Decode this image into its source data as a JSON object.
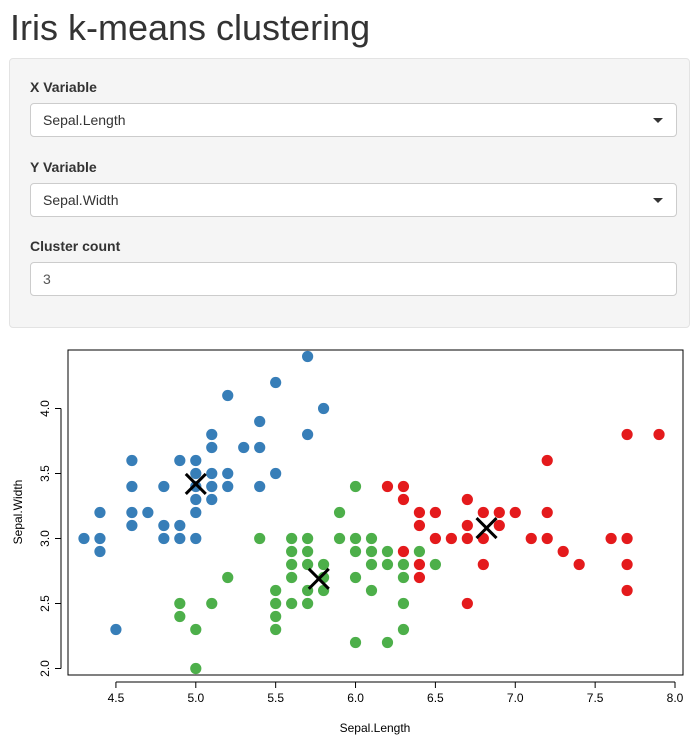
{
  "page": {
    "title": "Iris k-means clustering"
  },
  "controls": {
    "x_variable": {
      "label": "X Variable",
      "value": "Sepal.Length"
    },
    "y_variable": {
      "label": "Y Variable",
      "value": "Sepal.Width"
    },
    "cluster_count": {
      "label": "Cluster count",
      "value": "3"
    }
  },
  "chart_data": {
    "type": "scatter",
    "xlabel": "Sepal.Length",
    "ylabel": "Sepal.Width",
    "xlim": [
      4.2,
      8.05
    ],
    "ylim": [
      1.95,
      4.45
    ],
    "xticks": [
      "4.5",
      "5.0",
      "5.5",
      "6.0",
      "6.5",
      "7.0",
      "7.5",
      "8.0"
    ],
    "yticks": [
      "2.0",
      "2.5",
      "3.0",
      "3.5",
      "4.0"
    ],
    "grid": false,
    "colors": {
      "blue": "#377eb8",
      "green": "#4daf4a",
      "red": "#e41a1c",
      "center": "#000000"
    },
    "series": [
      {
        "color": "#377eb8",
        "points": [
          [
            4.3,
            3.0
          ],
          [
            4.4,
            2.9
          ],
          [
            4.4,
            3.0
          ],
          [
            4.4,
            3.2
          ],
          [
            4.5,
            2.3
          ],
          [
            4.6,
            3.1
          ],
          [
            4.6,
            3.2
          ],
          [
            4.6,
            3.4
          ],
          [
            4.6,
            3.6
          ],
          [
            4.7,
            3.2
          ],
          [
            4.8,
            3.0
          ],
          [
            4.8,
            3.1
          ],
          [
            4.8,
            3.4
          ],
          [
            4.9,
            3.0
          ],
          [
            4.9,
            3.1
          ],
          [
            4.9,
            3.6
          ],
          [
            5.0,
            3.0
          ],
          [
            5.0,
            3.2
          ],
          [
            5.0,
            3.3
          ],
          [
            5.0,
            3.4
          ],
          [
            5.0,
            3.5
          ],
          [
            5.0,
            3.6
          ],
          [
            5.1,
            3.3
          ],
          [
            5.1,
            3.4
          ],
          [
            5.1,
            3.5
          ],
          [
            5.1,
            3.7
          ],
          [
            5.1,
            3.8
          ],
          [
            5.2,
            3.4
          ],
          [
            5.2,
            3.5
          ],
          [
            5.2,
            4.1
          ],
          [
            5.3,
            3.7
          ],
          [
            5.4,
            3.4
          ],
          [
            5.4,
            3.7
          ],
          [
            5.4,
            3.9
          ],
          [
            5.5,
            3.5
          ],
          [
            5.5,
            4.2
          ],
          [
            5.7,
            3.8
          ],
          [
            5.7,
            4.4
          ],
          [
            5.8,
            4.0
          ]
        ]
      },
      {
        "color": "#4daf4a",
        "points": [
          [
            4.9,
            2.4
          ],
          [
            4.9,
            2.5
          ],
          [
            5.0,
            2.0
          ],
          [
            5.0,
            2.3
          ],
          [
            5.1,
            2.5
          ],
          [
            5.2,
            2.7
          ],
          [
            5.4,
            3.0
          ],
          [
            5.5,
            2.3
          ],
          [
            5.5,
            2.4
          ],
          [
            5.5,
            2.5
          ],
          [
            5.5,
            2.6
          ],
          [
            5.6,
            2.5
          ],
          [
            5.6,
            2.7
          ],
          [
            5.6,
            2.8
          ],
          [
            5.6,
            2.9
          ],
          [
            5.6,
            3.0
          ],
          [
            5.7,
            2.5
          ],
          [
            5.7,
            2.6
          ],
          [
            5.7,
            2.8
          ],
          [
            5.7,
            2.9
          ],
          [
            5.7,
            3.0
          ],
          [
            5.8,
            2.6
          ],
          [
            5.8,
            2.7
          ],
          [
            5.8,
            2.8
          ],
          [
            5.9,
            3.0
          ],
          [
            5.9,
            3.2
          ],
          [
            6.0,
            2.2
          ],
          [
            6.0,
            2.7
          ],
          [
            6.0,
            2.9
          ],
          [
            6.0,
            3.0
          ],
          [
            6.0,
            3.4
          ],
          [
            6.1,
            2.6
          ],
          [
            6.1,
            2.8
          ],
          [
            6.1,
            2.9
          ],
          [
            6.1,
            3.0
          ],
          [
            6.2,
            2.2
          ],
          [
            6.2,
            2.8
          ],
          [
            6.2,
            2.9
          ],
          [
            6.3,
            2.5
          ],
          [
            6.3,
            2.7
          ],
          [
            6.3,
            2.8
          ],
          [
            6.3,
            2.3
          ],
          [
            6.4,
            2.9
          ],
          [
            6.5,
            2.8
          ]
        ]
      },
      {
        "color": "#e41a1c",
        "points": [
          [
            6.2,
            3.4
          ],
          [
            6.3,
            2.9
          ],
          [
            6.3,
            3.3
          ],
          [
            6.3,
            3.4
          ],
          [
            6.4,
            2.7
          ],
          [
            6.4,
            2.8
          ],
          [
            6.4,
            3.1
          ],
          [
            6.4,
            3.2
          ],
          [
            6.5,
            3.0
          ],
          [
            6.5,
            3.2
          ],
          [
            6.6,
            3.0
          ],
          [
            6.7,
            2.5
          ],
          [
            6.7,
            3.0
          ],
          [
            6.7,
            3.1
          ],
          [
            6.7,
            3.3
          ],
          [
            6.8,
            2.8
          ],
          [
            6.8,
            3.0
          ],
          [
            6.8,
            3.2
          ],
          [
            6.9,
            3.1
          ],
          [
            6.9,
            3.2
          ],
          [
            7.0,
            3.2
          ],
          [
            7.1,
            3.0
          ],
          [
            7.2,
            3.0
          ],
          [
            7.2,
            3.2
          ],
          [
            7.2,
            3.6
          ],
          [
            7.3,
            2.9
          ],
          [
            7.4,
            2.8
          ],
          [
            7.6,
            3.0
          ],
          [
            7.7,
            2.6
          ],
          [
            7.7,
            2.8
          ],
          [
            7.7,
            3.0
          ],
          [
            7.7,
            3.8
          ],
          [
            7.9,
            3.8
          ]
        ]
      }
    ],
    "centers": [
      [
        5.0,
        3.42
      ],
      [
        5.77,
        2.69
      ],
      [
        6.82,
        3.08
      ]
    ]
  }
}
